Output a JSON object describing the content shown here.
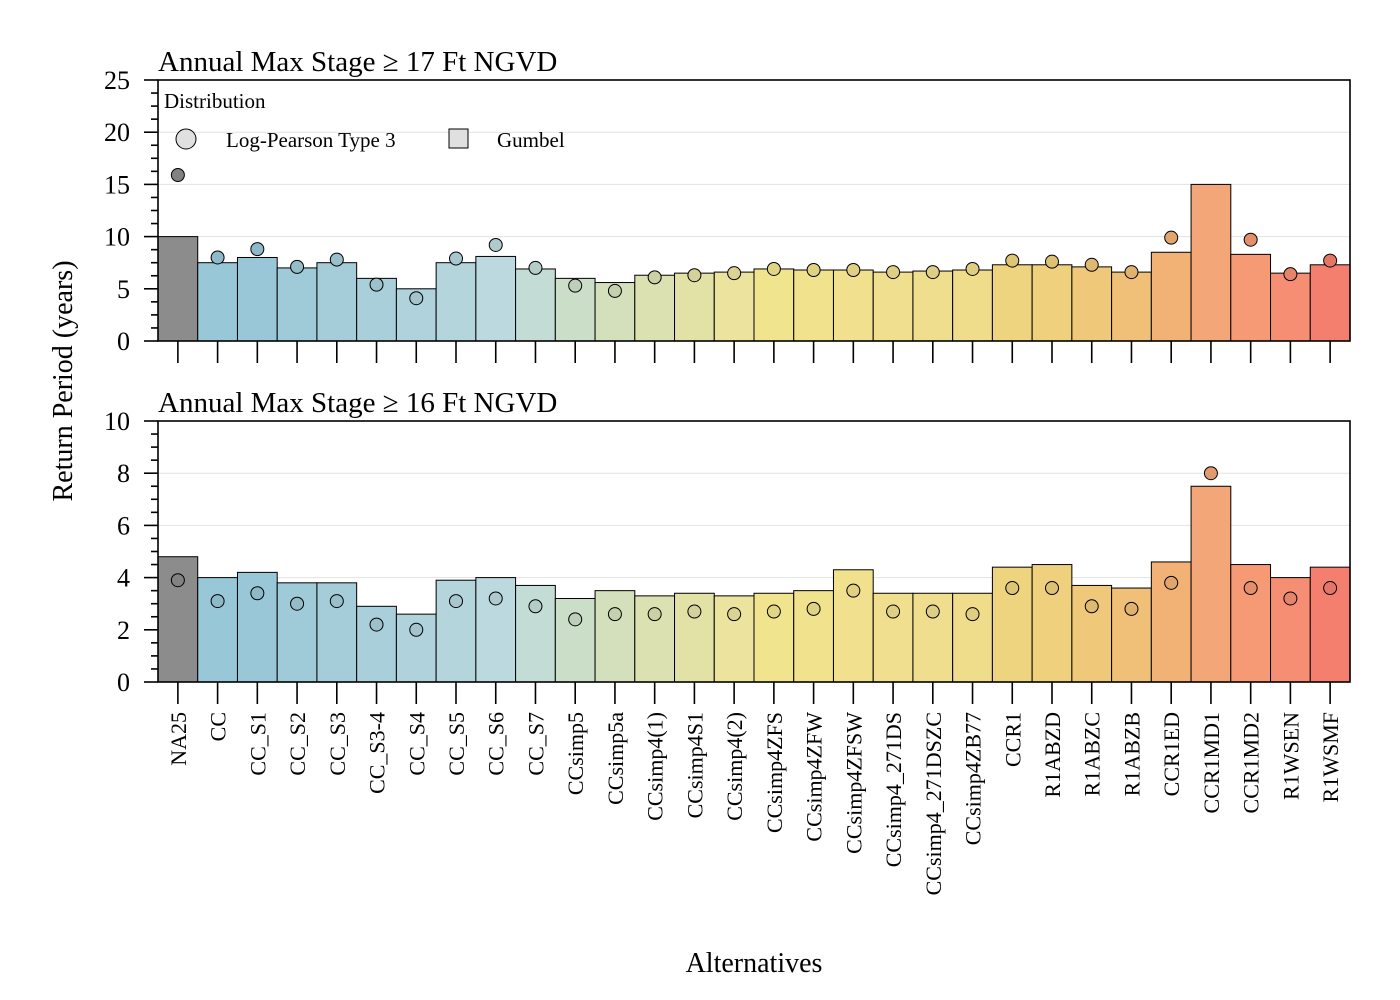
{
  "chart_data": {
    "type": "bar",
    "ylabel": "Return Period (years)",
    "xlabel": "Alternatives",
    "categories": [
      "NA25",
      "CC",
      "CC_S1",
      "CC_S2",
      "CC_S3",
      "CC_S3-4",
      "CC_S4",
      "CC_S5",
      "CC_S6",
      "CC_S7",
      "CCsimp5",
      "CCsimp5a",
      "CCsimp4(1)",
      "CCsimp4S1",
      "CCsimp4(2)",
      "CCsimp4ZFS",
      "CCsimp4ZFW",
      "CCsimp4ZFSW",
      "CCsimp4_271DS",
      "CCsimp4_271DSZC",
      "CCsimp4ZB77",
      "CCR1",
      "R1ABZD",
      "R1ABZC",
      "R1ABZB",
      "CCR1ED",
      "CCR1MD1",
      "CCR1MD2",
      "R1WSEN",
      "R1WSMF"
    ],
    "colors": [
      "#8c8c8c",
      "#98c7d8",
      "#99c7d7",
      "#9fcad8",
      "#a4cdd9",
      "#a9cfda",
      "#afd2dc",
      "#b5d5dd",
      "#bcd9df",
      "#c3dcd6",
      "#cbdfc8",
      "#d3e0bb",
      "#dbe1b0",
      "#e2e2a6",
      "#ebe39e",
      "#f1e48f",
      "#f1e28d",
      "#f1e08d",
      "#f0df8f",
      "#f0de8f",
      "#f0dd8c",
      "#efd47f",
      "#eed07d",
      "#efc87a",
      "#f0bf78",
      "#f2b175",
      "#f3a677",
      "#f59a74",
      "#f68e73",
      "#f57f6f"
    ],
    "legend": {
      "title": "Distribution",
      "position": "top-left",
      "entries": [
        {
          "label": "Log-Pearson Type 3",
          "marker": "circle"
        },
        {
          "label": "Gumbel",
          "marker": "square"
        }
      ]
    },
    "grid": true,
    "panels": [
      {
        "title": "Annual Max Stage ≥ 17 Ft NGVD",
        "ylim": [
          0,
          25
        ],
        "yticks": [
          0,
          5,
          10,
          15,
          20,
          25
        ],
        "series": [
          {
            "name": "Gumbel",
            "values": [
              10.0,
              7.5,
              8.0,
              7.0,
              7.5,
              6.0,
              5.0,
              7.5,
              8.1,
              6.9,
              6.0,
              5.6,
              6.3,
              6.5,
              6.6,
              6.9,
              6.8,
              6.8,
              6.6,
              6.7,
              6.8,
              7.3,
              7.3,
              7.1,
              6.6,
              8.5,
              15.0,
              8.3,
              6.5,
              7.3
            ]
          },
          {
            "name": "Log-Pearson Type 3",
            "values": [
              15.9,
              8.0,
              8.8,
              7.1,
              7.8,
              5.4,
              4.1,
              7.9,
              9.2,
              7.0,
              5.3,
              4.8,
              6.1,
              6.3,
              6.5,
              6.9,
              6.8,
              6.8,
              6.6,
              6.6,
              6.9,
              7.7,
              7.6,
              7.3,
              6.6,
              9.9,
              null,
              9.7,
              6.4,
              7.7
            ]
          }
        ]
      },
      {
        "title": "Annual Max Stage ≥ 16 Ft NGVD",
        "ylim": [
          0,
          10
        ],
        "yticks": [
          0,
          2,
          4,
          6,
          8,
          10
        ],
        "series": [
          {
            "name": "Gumbel",
            "values": [
              4.8,
              4.0,
              4.2,
              3.8,
              3.8,
              2.9,
              2.6,
              3.9,
              4.0,
              3.7,
              3.2,
              3.5,
              3.3,
              3.4,
              3.3,
              3.4,
              3.5,
              4.3,
              3.4,
              3.4,
              3.4,
              4.4,
              4.5,
              3.7,
              3.6,
              4.6,
              7.5,
              4.5,
              4.0,
              4.4
            ]
          },
          {
            "name": "Log-Pearson Type 3",
            "values": [
              3.9,
              3.1,
              3.4,
              3.0,
              3.1,
              2.2,
              2.0,
              3.1,
              3.2,
              2.9,
              2.4,
              2.6,
              2.6,
              2.7,
              2.6,
              2.7,
              2.8,
              3.5,
              2.7,
              2.7,
              2.6,
              3.6,
              3.6,
              2.9,
              2.8,
              3.8,
              8.0,
              3.6,
              3.2,
              3.6
            ]
          }
        ]
      }
    ]
  }
}
